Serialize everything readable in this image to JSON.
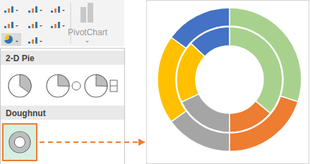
{
  "ribbon": {
    "button": "PivotChart"
  },
  "menu": {
    "sections": [
      "2-D Pie",
      "Doughnut"
    ]
  },
  "chart_data": {
    "type": "doughnut",
    "colors": [
      "#a9d18e",
      "#ed7d31",
      "#a5a5a5",
      "#ffc000",
      "#4472c4"
    ],
    "series": [
      {
        "values": [
          30,
          20,
          15,
          20,
          15
        ]
      },
      {
        "values": [
          36,
          14,
          18,
          19,
          13
        ]
      }
    ]
  }
}
